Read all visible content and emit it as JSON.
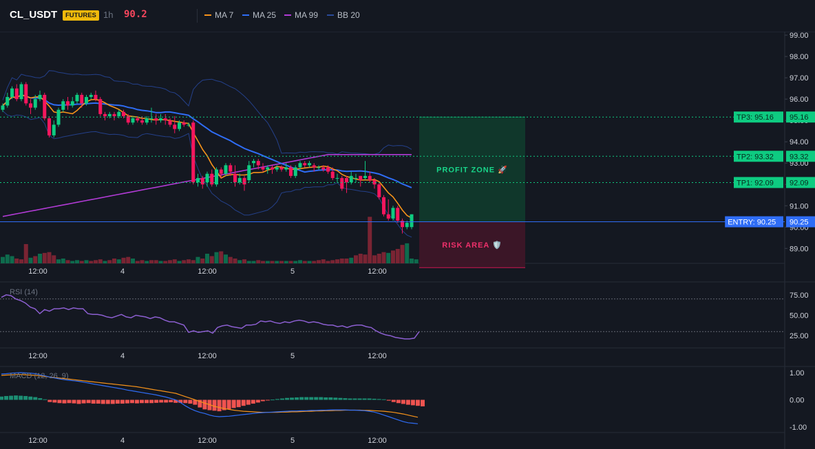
{
  "header": {
    "symbol": "CL_USDT",
    "market_badge": "FUTURES",
    "timeframe": "1h",
    "last_price": "90.2",
    "indicators": [
      {
        "label": "MA 7",
        "color": "#f7931a"
      },
      {
        "label": "MA 25",
        "color": "#2f6df6"
      },
      {
        "label": "MA 99",
        "color": "#b23bd6"
      },
      {
        "label": "BB 20",
        "color": "#2a4b9a"
      }
    ]
  },
  "colors": {
    "up": "#0ecb81",
    "down": "#f6165d",
    "profit_zone": "#0f3b2c",
    "risk_zone": "#3d1628",
    "entry_line": "#2f6df6",
    "tp_line": "#0ecb81",
    "rsi": "#8c5fd1"
  },
  "chart_data": [
    {
      "type": "candlestick",
      "title": "",
      "y_range": [
        88.3,
        99.1
      ],
      "y_ticks": [
        "99.00",
        "98.00",
        "97.00",
        "96.00",
        "95.00",
        "94.00",
        "93.00",
        "92.00",
        "91.00",
        "90.00",
        "89.00"
      ],
      "x_ticks": [
        "12:00",
        "4",
        "12:00",
        "5",
        "12:00"
      ],
      "candles": [
        [
          95.5,
          95.7,
          95.4,
          95.8
        ],
        [
          95.7,
          96.1,
          95.6,
          96.3
        ],
        [
          96.1,
          96.5,
          96.0,
          96.6
        ],
        [
          96.5,
          96.0,
          95.9,
          96.7
        ],
        [
          96.0,
          96.7,
          95.9,
          96.8
        ],
        [
          96.7,
          95.8,
          95.7,
          96.8
        ],
        [
          95.8,
          95.6,
          95.3,
          96.0
        ],
        [
          95.6,
          96.0,
          95.5,
          96.2
        ],
        [
          96.0,
          96.2,
          95.9,
          96.4
        ],
        [
          96.2,
          95.1,
          95.0,
          96.3
        ],
        [
          95.1,
          94.3,
          94.2,
          95.2
        ],
        [
          94.3,
          94.8,
          94.2,
          95.0
        ],
        [
          94.8,
          95.5,
          94.7,
          95.6
        ],
        [
          95.5,
          95.9,
          95.4,
          96.0
        ],
        [
          95.9,
          95.7,
          95.5,
          96.1
        ],
        [
          95.7,
          95.9,
          95.6,
          96.1
        ],
        [
          95.9,
          96.2,
          95.8,
          96.3
        ],
        [
          96.2,
          95.8,
          95.6,
          96.3
        ],
        [
          95.8,
          96.1,
          95.7,
          96.2
        ],
        [
          96.1,
          96.2,
          96.0,
          96.3
        ],
        [
          96.2,
          96.0,
          95.9,
          96.4
        ],
        [
          96.0,
          95.3,
          95.2,
          96.1
        ],
        [
          95.3,
          95.2,
          95.0,
          95.4
        ],
        [
          95.2,
          95.3,
          95.1,
          95.4
        ],
        [
          95.3,
          95.2,
          95.0,
          95.4
        ],
        [
          95.2,
          95.4,
          95.1,
          95.5
        ],
        [
          95.4,
          95.2,
          95.1,
          95.5
        ],
        [
          95.2,
          94.9,
          94.8,
          95.3
        ],
        [
          94.9,
          95.1,
          94.8,
          95.2
        ],
        [
          95.1,
          95.0,
          94.9,
          95.2
        ],
        [
          95.0,
          94.9,
          94.8,
          95.2
        ],
        [
          94.9,
          95.1,
          94.8,
          95.2
        ],
        [
          95.1,
          95.1,
          94.9,
          95.6
        ],
        [
          95.1,
          95.0,
          94.8,
          95.3
        ],
        [
          95.0,
          95.1,
          94.9,
          95.3
        ],
        [
          95.1,
          95.0,
          94.8,
          95.3
        ],
        [
          95.0,
          94.8,
          94.7,
          95.1
        ],
        [
          94.8,
          94.6,
          94.4,
          95.2
        ],
        [
          94.6,
          94.9,
          94.5,
          95.0
        ],
        [
          94.9,
          94.8,
          94.7,
          95.0
        ],
        [
          94.8,
          94.8,
          94.7,
          94.9
        ],
        [
          94.9,
          92.1,
          92.0,
          95.0
        ],
        [
          92.1,
          92.3,
          91.9,
          92.5
        ],
        [
          92.3,
          92.0,
          91.8,
          92.4
        ],
        [
          92.1,
          92.5,
          91.9,
          92.6
        ],
        [
          92.5,
          92.0,
          91.9,
          92.7
        ],
        [
          92.0,
          92.7,
          91.9,
          92.8
        ],
        [
          92.7,
          92.5,
          92.3,
          92.8
        ],
        [
          92.5,
          92.9,
          92.4,
          93.0
        ],
        [
          92.9,
          92.6,
          92.4,
          93.0
        ],
        [
          92.5,
          92.1,
          91.9,
          92.9
        ],
        [
          92.1,
          92.3,
          92.0,
          92.5
        ],
        [
          92.3,
          92.0,
          91.7,
          92.4
        ],
        [
          92.2,
          92.9,
          92.1,
          93.1
        ],
        [
          93.0,
          93.1,
          92.8,
          93.2
        ],
        [
          93.1,
          92.9,
          92.7,
          93.2
        ],
        [
          92.8,
          92.7,
          92.6,
          93.0
        ],
        [
          92.7,
          92.8,
          92.5,
          92.9
        ],
        [
          92.8,
          92.7,
          92.5,
          92.9
        ],
        [
          92.7,
          92.8,
          92.6,
          92.9
        ],
        [
          92.8,
          92.7,
          92.6,
          92.9
        ],
        [
          92.7,
          92.8,
          92.6,
          93.0
        ],
        [
          92.8,
          92.4,
          92.3,
          92.9
        ],
        [
          92.4,
          92.8,
          92.3,
          92.9
        ],
        [
          92.8,
          93.0,
          92.7,
          93.1
        ],
        [
          93.0,
          92.9,
          92.8,
          93.1
        ],
        [
          92.9,
          93.0,
          92.8,
          93.1
        ],
        [
          92.9,
          92.8,
          92.6,
          93.0
        ],
        [
          92.8,
          92.8,
          92.7,
          92.9
        ],
        [
          92.8,
          92.7,
          92.6,
          92.9
        ],
        [
          92.8,
          92.6,
          92.5,
          92.9
        ],
        [
          92.6,
          92.3,
          92.2,
          92.8
        ],
        [
          92.3,
          92.3,
          92.1,
          92.5
        ],
        [
          92.3,
          91.8,
          91.7,
          92.4
        ],
        [
          92.3,
          92.1,
          91.6,
          92.4
        ],
        [
          92.1,
          92.4,
          92.0,
          92.6
        ],
        [
          92.3,
          92.3,
          92.1,
          92.5
        ],
        [
          92.4,
          92.2,
          91.9,
          92.4
        ],
        [
          92.3,
          92.4,
          92.2,
          93.1
        ],
        [
          92.4,
          92.2,
          92.1,
          92.6
        ],
        [
          92.2,
          92.0,
          91.8,
          92.3
        ],
        [
          92.0,
          91.4,
          91.3,
          92.1
        ],
        [
          91.4,
          90.6,
          90.5,
          91.5
        ],
        [
          90.6,
          90.4,
          90.3,
          91.3
        ],
        [
          90.4,
          90.9,
          90.3,
          91.0
        ],
        [
          90.9,
          90.3,
          90.2,
          91.0
        ],
        [
          90.3,
          90.0,
          89.7,
          90.4
        ],
        [
          90.0,
          90.2,
          89.9,
          90.3
        ],
        [
          90.0,
          90.6,
          89.9,
          90.6
        ]
      ],
      "volumes": [
        0.8,
        1.1,
        0.9,
        0.6,
        0.5,
        2.4,
        0.7,
        0.9,
        1.2,
        1.3,
        1.4,
        1.0,
        0.5,
        0.6,
        0.4,
        0.3,
        0.4,
        0.3,
        0.4,
        0.3,
        0.4,
        0.5,
        0.3,
        0.4,
        0.6,
        0.5,
        0.7,
        0.8,
        0.6,
        0.3,
        0.4,
        0.3,
        0.4,
        0.4,
        0.3,
        0.3,
        0.4,
        0.5,
        0.3,
        0.4,
        0.5,
        0.4,
        0.8,
        0.6,
        1.2,
        0.9,
        1.4,
        1.5,
        1.1,
        0.8,
        0.6,
        0.4,
        0.5,
        0.3,
        0.3,
        0.4,
        0.3,
        0.3,
        0.3,
        0.3,
        0.3,
        0.3,
        0.3,
        0.3,
        0.4,
        0.3,
        0.3,
        0.3,
        0.4,
        0.5,
        0.3,
        0.4,
        0.5,
        0.6,
        0.6,
        0.7,
        1.0,
        1.2,
        1.1,
        5.8,
        1.0,
        1.2,
        1.4,
        1.3,
        1.6,
        1.8,
        2.3,
        2.5,
        0.6,
        0.5
      ],
      "volume_up": [
        1,
        1,
        1,
        0,
        0,
        0,
        1,
        0,
        1,
        0,
        0,
        0,
        1,
        1,
        0,
        1,
        1,
        0,
        1,
        0,
        0,
        0,
        1,
        0,
        0,
        1,
        0,
        0,
        1,
        0,
        0,
        1,
        0,
        0,
        1,
        0,
        0,
        0,
        1,
        0,
        0,
        0,
        1,
        0,
        1,
        0,
        1,
        0,
        1,
        0,
        0,
        1,
        0,
        1,
        1,
        0,
        0,
        1,
        0,
        1,
        0,
        1,
        0,
        1,
        1,
        0,
        1,
        0,
        0,
        0,
        0,
        0,
        0,
        0,
        0,
        1,
        0,
        0,
        0,
        0,
        0,
        0,
        0,
        1,
        0,
        0,
        0,
        1,
        1,
        1
      ],
      "profit_zone": {
        "top": 95.16,
        "bottom": 90.25,
        "label": "PROFIT ZONE 🚀"
      },
      "risk_zone": {
        "top": 90.25,
        "bottom": 88.1,
        "label": "RISK AREA 🛡️"
      },
      "levels": [
        {
          "name": "TP3",
          "label": "TP3: 95.16",
          "price": 95.16,
          "value": "95.16",
          "kind": "tp"
        },
        {
          "name": "TP2",
          "label": "TP2: 93.32",
          "price": 93.32,
          "value": "93.32",
          "kind": "tp"
        },
        {
          "name": "TP1",
          "label": "TP1: 92.09",
          "price": 92.09,
          "value": "92.09",
          "kind": "tp"
        },
        {
          "name": "ENTRY",
          "label": "ENTRY: 90.25",
          "price": 90.25,
          "value": "90.25",
          "kind": "entry"
        }
      ]
    },
    {
      "type": "line",
      "title": "RSI (14)",
      "y_range": [
        10,
        90
      ],
      "y_ticks": [
        "75.00",
        "50.00",
        "25.00"
      ],
      "reference_lines": [
        70,
        30
      ],
      "x_ticks": [
        "12:00",
        "4",
        "12:00",
        "5",
        "12:00"
      ],
      "values": [
        72,
        75,
        74,
        70,
        68,
        65,
        60,
        58,
        52,
        57,
        55,
        58,
        58,
        59,
        57,
        59,
        58,
        58,
        52,
        51,
        51,
        50,
        48,
        47,
        49,
        51,
        48,
        47,
        50,
        49,
        48,
        46,
        48,
        47,
        44,
        42,
        42,
        40,
        38,
        29,
        31,
        29,
        30,
        31,
        28,
        35,
        37,
        38,
        36,
        35,
        34,
        38,
        38,
        39,
        43,
        42,
        43,
        41,
        40,
        42,
        41,
        43,
        44,
        43,
        41,
        42,
        41,
        39,
        38,
        38,
        36,
        37,
        35,
        37,
        38,
        38,
        36,
        35,
        31,
        28,
        26,
        25,
        23,
        22,
        21,
        21,
        22,
        30
      ]
    },
    {
      "type": "bar",
      "title": "MACD (12, 26, 9)",
      "y_range": [
        -1.2,
        1.2
      ],
      "y_ticks": [
        "1.00",
        "0.00",
        "-1.00"
      ],
      "x_ticks": [
        "12:00",
        "4",
        "12:00",
        "5",
        "12:00"
      ],
      "histogram": [
        0.12,
        0.14,
        0.15,
        0.16,
        0.15,
        0.14,
        0.12,
        0.1,
        0.06,
        0.02,
        -0.08,
        -0.1,
        -0.12,
        -0.13,
        -0.12,
        -0.13,
        -0.15,
        -0.13,
        -0.12,
        -0.14,
        -0.14,
        -0.15,
        -0.15,
        -0.15,
        -0.14,
        -0.14,
        -0.13,
        -0.12,
        -0.13,
        -0.12,
        -0.12,
        -0.12,
        -0.11,
        -0.1,
        -0.1,
        -0.09,
        -0.11,
        -0.11,
        -0.12,
        -0.14,
        -0.18,
        -0.28,
        -0.35,
        -0.38,
        -0.4,
        -0.42,
        -0.38,
        -0.34,
        -0.3,
        -0.27,
        -0.22,
        -0.18,
        -0.14,
        -0.1,
        -0.05,
        -0.02,
        0.01,
        0.03,
        0.05,
        0.07,
        0.08,
        0.09,
        0.1,
        0.1,
        0.1,
        0.1,
        0.1,
        0.09,
        0.09,
        0.08,
        0.07,
        0.06,
        0.05,
        0.05,
        0.05,
        0.05,
        0.05,
        0.04,
        0.03,
        0.02,
        -0.03,
        -0.08,
        -0.12,
        -0.15,
        -0.18,
        -0.2,
        -0.22,
        -0.24
      ],
      "macd": [
        0.95,
        0.96,
        0.98,
        0.99,
        1.0,
        0.99,
        0.98,
        0.96,
        0.92,
        0.88,
        0.84,
        0.8,
        0.77,
        0.74,
        0.72,
        0.7,
        0.68,
        0.65,
        0.62,
        0.58,
        0.55,
        0.52,
        0.49,
        0.46,
        0.43,
        0.4,
        0.36,
        0.33,
        0.3,
        0.27,
        0.24,
        0.21,
        0.18,
        0.14,
        0.1,
        0.05,
        0.0,
        -0.1,
        -0.22,
        -0.32,
        -0.4,
        -0.46,
        -0.5,
        -0.56,
        -0.6,
        -0.62,
        -0.61,
        -0.6,
        -0.58,
        -0.56,
        -0.54,
        -0.52,
        -0.5,
        -0.48,
        -0.47,
        -0.46,
        -0.45,
        -0.44,
        -0.43,
        -0.42,
        -0.41,
        -0.41,
        -0.4,
        -0.4,
        -0.39,
        -0.39,
        -0.38,
        -0.38,
        -0.37,
        -0.37,
        -0.37,
        -0.37,
        -0.38,
        -0.38,
        -0.39,
        -0.4,
        -0.42,
        -0.45,
        -0.5,
        -0.56,
        -0.62,
        -0.68,
        -0.74,
        -0.8,
        -0.84,
        -0.86,
        -0.88
      ],
      "signal": [
        0.9,
        0.91,
        0.92,
        0.93,
        0.93,
        0.92,
        0.91,
        0.9,
        0.88,
        0.86,
        0.84,
        0.82,
        0.8,
        0.78,
        0.76,
        0.74,
        0.72,
        0.7,
        0.68,
        0.66,
        0.64,
        0.62,
        0.6,
        0.58,
        0.56,
        0.54,
        0.52,
        0.5,
        0.48,
        0.45,
        0.42,
        0.39,
        0.36,
        0.33,
        0.3,
        0.27,
        0.24,
        0.18,
        0.12,
        0.06,
        0.0,
        -0.06,
        -0.12,
        -0.18,
        -0.24,
        -0.28,
        -0.32,
        -0.35,
        -0.38,
        -0.4,
        -0.42,
        -0.43,
        -0.44,
        -0.45,
        -0.46,
        -0.46,
        -0.46,
        -0.46,
        -0.45,
        -0.45,
        -0.44,
        -0.44,
        -0.43,
        -0.42,
        -0.42,
        -0.41,
        -0.41,
        -0.4,
        -0.4,
        -0.39,
        -0.39,
        -0.38,
        -0.38,
        -0.38,
        -0.38,
        -0.39,
        -0.39,
        -0.4,
        -0.41,
        -0.42,
        -0.44,
        -0.46,
        -0.49,
        -0.52,
        -0.56,
        -0.6,
        -0.64
      ]
    }
  ]
}
